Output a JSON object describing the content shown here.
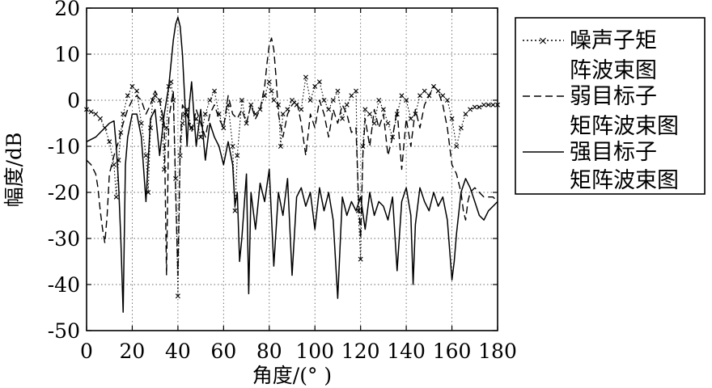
{
  "chart_data": {
    "type": "line",
    "title": "",
    "xlabel": "角度/(°  )",
    "ylabel": "幅度/dB",
    "xlim": [
      0,
      180
    ],
    "ylim": [
      -50,
      20
    ],
    "xticks": [
      0,
      20,
      40,
      60,
      80,
      100,
      120,
      140,
      160,
      180
    ],
    "yticks": [
      20,
      10,
      0,
      -10,
      -20,
      -30,
      -40,
      -50
    ],
    "grid": true,
    "legend_position": "right",
    "series": [
      {
        "name": "噪声子矩阵波束图",
        "style": "dotted-x",
        "color": "#000000",
        "x": [
          0,
          2,
          4,
          6,
          8,
          10,
          12,
          13,
          14,
          15,
          16,
          18,
          20,
          22,
          24,
          26,
          27,
          28,
          29,
          30,
          32,
          33,
          34,
          35,
          36,
          37,
          38,
          39,
          40,
          41,
          42,
          43,
          44,
          46,
          48,
          50,
          52,
          54,
          56,
          58,
          60,
          62,
          64,
          65,
          66,
          68,
          70,
          72,
          74,
          76,
          78,
          80,
          81,
          82,
          84,
          85,
          86,
          88,
          90,
          92,
          94,
          96,
          98,
          100,
          102,
          104,
          106,
          108,
          110,
          112,
          114,
          116,
          118,
          119,
          120,
          121,
          122,
          124,
          126,
          128,
          130,
          132,
          134,
          136,
          138,
          140,
          142,
          144,
          146,
          148,
          150,
          152,
          154,
          156,
          158,
          160,
          162,
          164,
          166,
          168,
          170,
          172,
          174,
          176,
          178,
          180
        ],
        "values": [
          -2,
          -2.5,
          -3,
          -4,
          -6,
          -9,
          -14,
          -21,
          -13,
          -7,
          -3,
          1,
          3,
          2,
          -5,
          -12,
          -20,
          -6,
          0,
          1,
          0,
          -4,
          -15,
          -6,
          3,
          4,
          0,
          -17,
          -42.5,
          -12,
          -5,
          -3,
          -2,
          -6,
          -4,
          -8,
          -3,
          0,
          2,
          -3,
          -6,
          -1,
          -10,
          -24,
          -12,
          0,
          -5,
          -1,
          -3,
          -2,
          1,
          4,
          2,
          0,
          -1,
          -10,
          -3,
          -2,
          0,
          -1,
          -2,
          5,
          0,
          3,
          4,
          0,
          -2,
          0,
          2,
          -4,
          -1,
          1,
          2,
          -24,
          -34.5,
          -10,
          -2,
          -3,
          -5,
          0,
          -2,
          -5,
          -8,
          -3,
          1,
          0,
          -4,
          -3,
          1,
          2,
          1,
          3,
          2,
          1,
          0,
          -4,
          -10,
          -6,
          -3,
          -2,
          -1.5,
          -1.5,
          -1,
          -1,
          -1,
          -1
        ]
      },
      {
        "name": "弱目标子矩阵波束图",
        "style": "dashed",
        "color": "#000000",
        "x": [
          0,
          2,
          4,
          5,
          6,
          7,
          8,
          9,
          10,
          12,
          14,
          16,
          18,
          20,
          22,
          24,
          26,
          28,
          30,
          32,
          34,
          35,
          36,
          38,
          39,
          40,
          41,
          42,
          44,
          46,
          48,
          50,
          52,
          54,
          56,
          58,
          60,
          62,
          64,
          66,
          68,
          70,
          72,
          74,
          76,
          78,
          79,
          80,
          81,
          82,
          83,
          84,
          86,
          88,
          90,
          92,
          94,
          96,
          98,
          100,
          102,
          104,
          106,
          108,
          110,
          112,
          114,
          116,
          118,
          119,
          120,
          121,
          122,
          124,
          126,
          128,
          130,
          132,
          134,
          136,
          138,
          140,
          142,
          144,
          146,
          148,
          150,
          152,
          154,
          156,
          158,
          160,
          162,
          164,
          165,
          166,
          167,
          168,
          170,
          172,
          174,
          176,
          178,
          180
        ],
        "values": [
          -13,
          -14,
          -16,
          -19,
          -24,
          -28,
          -31,
          -25,
          -16,
          -12,
          -9,
          -5,
          -2,
          0,
          1,
          0,
          -3,
          -1,
          2,
          0,
          -5,
          -38,
          -4,
          2,
          -20,
          -38,
          -10,
          -1,
          -3,
          -7,
          -2,
          -5,
          -8,
          -3,
          -1,
          -4,
          -6,
          1,
          -3,
          -4,
          -2,
          -5,
          -1,
          -4,
          -2,
          3,
          8,
          12,
          13.5,
          11,
          5,
          -3,
          -8,
          -3,
          -1,
          0,
          -5,
          -12,
          -3,
          -6,
          0,
          -3,
          -8,
          -2,
          -5,
          -1,
          -3,
          -7,
          -6,
          -20,
          -30,
          -12,
          -4,
          -10,
          -2,
          -6,
          -3,
          -12,
          -8,
          -2,
          -15,
          -4,
          -10,
          -2,
          -6,
          -1,
          1,
          3,
          2,
          -1,
          -6,
          -14,
          -16,
          -20,
          -24,
          -26,
          -22,
          -20,
          -19,
          -20,
          -21,
          -21,
          -21,
          -22
        ]
      },
      {
        "name": "强目标子矩阵波束图",
        "style": "solid",
        "color": "#000000",
        "x": [
          0,
          2,
          4,
          6,
          8,
          10,
          12,
          13,
          14,
          15,
          16,
          17,
          18,
          20,
          22,
          24,
          26,
          28,
          30,
          32,
          34,
          36,
          38,
          39,
          40,
          41,
          42,
          43,
          44,
          45,
          46,
          47,
          48,
          50,
          52,
          54,
          56,
          58,
          60,
          62,
          64,
          65,
          66,
          67,
          68,
          70,
          71,
          72,
          74,
          76,
          78,
          80,
          82,
          84,
          86,
          88,
          90,
          92,
          94,
          96,
          98,
          100,
          102,
          104,
          106,
          108,
          110,
          112,
          114,
          116,
          118,
          120,
          122,
          124,
          126,
          128,
          130,
          132,
          134,
          136,
          138,
          140,
          142,
          143,
          144,
          146,
          148,
          150,
          152,
          154,
          156,
          158,
          160,
          161,
          162,
          164,
          166,
          168,
          170,
          172,
          174,
          176,
          178,
          180
        ],
        "values": [
          -9,
          -8.5,
          -8,
          -7,
          -6,
          -5,
          -4.5,
          -10,
          -18,
          -30,
          -46,
          -14,
          -8,
          -3,
          -3,
          -8,
          -22,
          -4,
          -2,
          -12,
          -3,
          3,
          13,
          16.5,
          18,
          16,
          10,
          0,
          -10,
          -1,
          4,
          -3,
          -10,
          -2,
          -13,
          -5,
          -8,
          -10,
          -14,
          -9,
          -14,
          -23,
          -20,
          -35,
          -30,
          -16,
          -42,
          -20,
          -28,
          -18,
          -22,
          -15,
          -36,
          -20,
          -25,
          -17,
          -38,
          -21,
          -19,
          -23,
          -20,
          -28,
          -19,
          -24,
          -20,
          -26,
          -43,
          -21,
          -25,
          -22,
          -24,
          -21,
          -28,
          -20,
          -25,
          -22,
          -23,
          -26,
          -21,
          -37,
          -22,
          -19,
          -25,
          -40,
          -27,
          -19,
          -22,
          -24,
          -20,
          -23,
          -21,
          -26,
          -39,
          -35,
          -29,
          -20,
          -17,
          -19,
          -22,
          -25,
          -26,
          -24,
          -23,
          -22
        ]
      }
    ]
  },
  "legend": {
    "items": [
      {
        "line1": "噪声子矩",
        "line2": "阵波束图"
      },
      {
        "line1": "弱目标子",
        "line2": "矩阵波束图"
      },
      {
        "line1": "强目标子",
        "line2": "矩阵波束图"
      }
    ]
  }
}
